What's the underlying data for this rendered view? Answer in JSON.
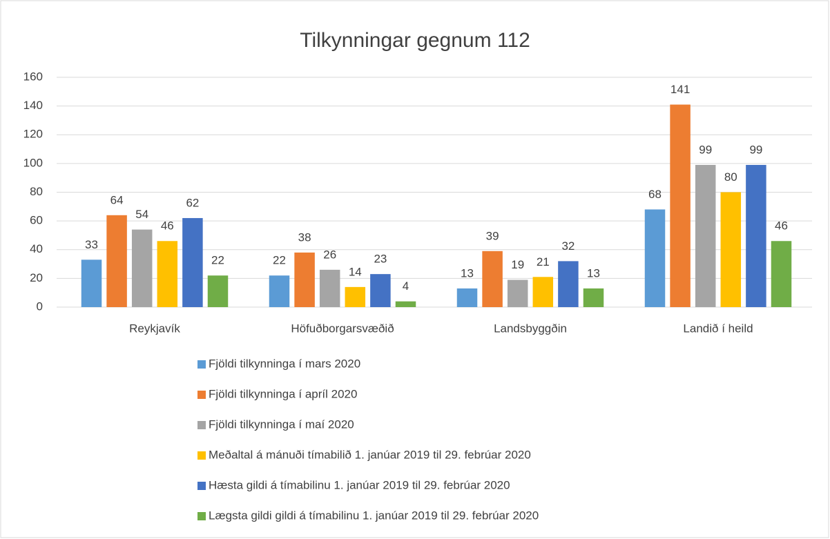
{
  "chart_data": {
    "type": "bar",
    "title": "Tilkynningar gegnum 112",
    "categories": [
      "Reykjavík",
      "Höfuðborgarsvæðið",
      "Landsbyggðin",
      "Landið í heild"
    ],
    "series": [
      {
        "name": "Fjöldi tilkynninga í mars 2020",
        "color": "#5b9bd5",
        "values": [
          33,
          22,
          13,
          68
        ]
      },
      {
        "name": "Fjöldi tilkynninga í apríl 2020",
        "color": "#ed7d31",
        "values": [
          64,
          38,
          39,
          141
        ]
      },
      {
        "name": "Fjöldi tilkynninga í maí 2020",
        "color": "#a5a5a5",
        "values": [
          54,
          26,
          19,
          99
        ]
      },
      {
        "name": "Meðaltal á mánuði tímabilið 1. janúar 2019 til 29. febrúar 2020",
        "color": "#ffc000",
        "values": [
          46,
          14,
          21,
          80
        ]
      },
      {
        "name": "Hæsta gildi á tímabilinu 1. janúar 2019 til 29. febrúar 2020",
        "color": "#4472c4",
        "values": [
          62,
          23,
          32,
          99
        ]
      },
      {
        "name": "Lægsta gildi gildi á tímabilinu 1. janúar 2019 til 29. febrúar 2020",
        "color": "#70ad47",
        "values": [
          22,
          4,
          13,
          46
        ]
      }
    ],
    "ylim": [
      0,
      160
    ],
    "yticks": [
      0,
      20,
      40,
      60,
      80,
      100,
      120,
      140,
      160
    ],
    "grid": true,
    "legend": "bottom"
  }
}
